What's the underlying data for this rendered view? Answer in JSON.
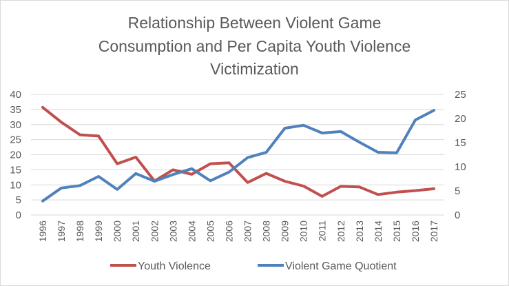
{
  "chart_data": {
    "type": "line",
    "title_lines": [
      "Relationship Between Violent Game",
      "Consumption and Per Capita Youth Violence",
      "Victimization"
    ],
    "categories": [
      "1996",
      "1997",
      "1998",
      "1999",
      "2000",
      "2001",
      "2002",
      "2003",
      "2004",
      "2005",
      "2006",
      "2007",
      "2008",
      "2009",
      "2010",
      "2011",
      "2012",
      "2013",
      "2014",
      "2015",
      "2016",
      "2017"
    ],
    "y_left": {
      "range": [
        0,
        40
      ],
      "ticks": [
        "0",
        "5",
        "10",
        "15",
        "20",
        "25",
        "30",
        "35",
        "40"
      ]
    },
    "y_right": {
      "range": [
        0,
        25
      ],
      "ticks": [
        "0",
        "5",
        "10",
        "15",
        "20",
        "25"
      ]
    },
    "grid": true,
    "legend_position": "bottom",
    "series": [
      {
        "name": "Youth Violence",
        "axis": "left",
        "color": "#c0504d",
        "values": [
          35.7,
          30.8,
          26.6,
          26.2,
          17.0,
          19.2,
          11.3,
          15.0,
          13.5,
          17.0,
          17.3,
          10.8,
          13.8,
          11.2,
          9.6,
          6.2,
          9.5,
          9.3,
          6.8,
          7.6,
          8.1,
          8.7
        ]
      },
      {
        "name": "Violent Game Quotient",
        "axis": "right",
        "color": "#4f81bd",
        "values": [
          2.9,
          5.6,
          6.1,
          8.0,
          5.3,
          8.6,
          7.0,
          8.4,
          9.6,
          7.1,
          8.9,
          11.9,
          13.0,
          18.0,
          18.6,
          17.0,
          17.3,
          15.1,
          13.0,
          12.9,
          19.7,
          21.7
        ]
      }
    ]
  }
}
